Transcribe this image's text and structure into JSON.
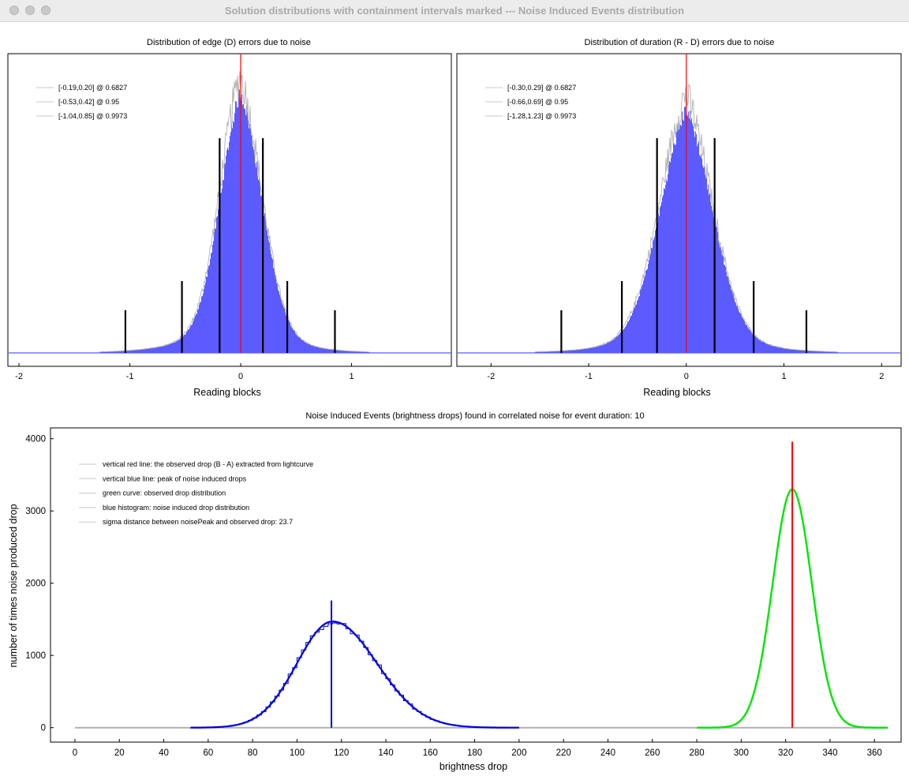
{
  "window": {
    "title": "Solution distributions with containment intervals marked --- Noise Induced Events distribution",
    "buttons": [
      "close",
      "minimize",
      "zoom"
    ]
  },
  "colors": {
    "histogram_fill": "#5b5bff",
    "histogram_outline": "#a9a9a9",
    "red_line": "#ff0000",
    "interval_lines": "#000000",
    "blue_curve": "#0000dd",
    "green_curve": "#00e600",
    "baseline_gray": "#b0b0b0"
  },
  "chart_data": [
    {
      "type": "bar",
      "title": "Distribution of edge (D) errors due to noise",
      "xlabel": "Reading blocks",
      "ylabel": "",
      "xlim": [
        -2.1,
        1.9
      ],
      "x_ticks": [
        "-2",
        "-1",
        "0",
        "1"
      ],
      "x_tick_values": [
        -2,
        -1,
        0,
        1
      ],
      "distribution": {
        "center": 0.0,
        "sigma_left": 0.19,
        "sigma_right": 0.2,
        "tail_left": 0.55,
        "tail_right": 0.5
      },
      "red_line_x": 0.0,
      "legend_position": "top-left",
      "legend": [
        "[-0.19,0.20] @ 0.6827",
        "[-0.53,0.42] @ 0.95",
        "[-1.04,0.85] @ 0.9973"
      ],
      "intervals": [
        {
          "lo": -0.19,
          "hi": 0.2,
          "confidence": 0.6827
        },
        {
          "lo": -0.53,
          "hi": 0.42,
          "confidence": 0.95
        },
        {
          "lo": -1.04,
          "hi": 0.85,
          "confidence": 0.9973
        }
      ]
    },
    {
      "type": "bar",
      "title": "Distribution of duration (R - D) errors due to noise",
      "xlabel": "Reading blocks",
      "ylabel": "",
      "xlim": [
        -2.35,
        2.2
      ],
      "x_ticks": [
        "-2",
        "-1",
        "0",
        "1",
        "2"
      ],
      "x_tick_values": [
        -2,
        -1,
        0,
        1,
        2
      ],
      "distribution": {
        "center": 0.0,
        "sigma_left": 0.28,
        "sigma_right": 0.28,
        "tail_left": 0.68,
        "tail_right": 0.68
      },
      "red_line_x": 0.0,
      "legend_position": "top-left",
      "legend": [
        "[-0.30,0.29] @ 0.6827",
        "[-0.66,0.69] @ 0.95",
        "[-1.28,1.23] @ 0.9973"
      ],
      "intervals": [
        {
          "lo": -0.3,
          "hi": 0.29,
          "confidence": 0.6827
        },
        {
          "lo": -0.66,
          "hi": 0.69,
          "confidence": 0.95
        },
        {
          "lo": -1.28,
          "hi": 1.23,
          "confidence": 0.9973
        }
      ]
    },
    {
      "type": "line",
      "title": "Noise Induced Events (brightness drops) found in correlated noise for event duration: 10",
      "xlabel": "brightness drop",
      "ylabel": "number of times noise produced drop",
      "xlim": [
        -11,
        372
      ],
      "ylim": [
        -200,
        4150
      ],
      "x_ticks": [
        "0",
        "20",
        "40",
        "60",
        "80",
        "100",
        "120",
        "140",
        "160",
        "180",
        "200",
        "220",
        "240",
        "260",
        "280",
        "300",
        "320",
        "340",
        "360"
      ],
      "x_tick_values": [
        0,
        20,
        40,
        60,
        80,
        100,
        120,
        140,
        160,
        180,
        200,
        220,
        240,
        260,
        280,
        300,
        320,
        340,
        360
      ],
      "y_ticks": [
        "0",
        "1000",
        "2000",
        "3000",
        "4000"
      ],
      "y_tick_values": [
        0,
        1000,
        2000,
        3000,
        4000
      ],
      "legend_position": "top-left",
      "legend": [
        "vertical red line: the observed drop (B - A) extracted from lightcurve",
        "vertical blue line: peak of noise induced drops",
        "green curve: observed drop distribution",
        "blue histogram: noise induced drop distribution",
        "sigma distance between noisePeak and observed drop: 23.7"
      ],
      "series": [
        {
          "name": "blue histogram: noise induced drop distribution",
          "peak": 1470,
          "mean": 116,
          "sigma_left": 16,
          "sigma_right": 20,
          "x_range": [
            52,
            200
          ]
        },
        {
          "name": "green curve: observed drop distribution",
          "peak": 3300,
          "mean": 323,
          "sigma": 8.8,
          "x_range": [
            280,
            366
          ]
        }
      ],
      "baseline_x_range": [
        0,
        366
      ],
      "noise_peak_x": 115.5,
      "noise_peak_top": 1760,
      "observed_drop_x": 323,
      "observed_drop_top": 3960
    }
  ]
}
